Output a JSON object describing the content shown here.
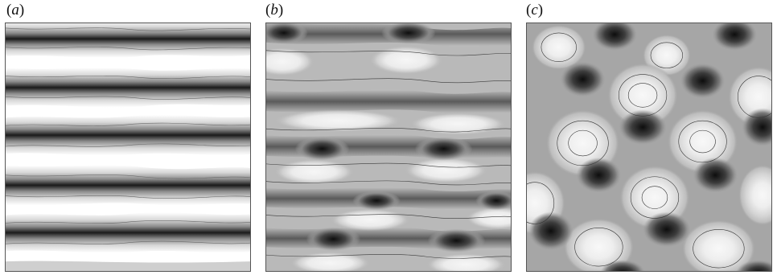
{
  "figure": {
    "panels": [
      {
        "id": "a",
        "label": "(a)",
        "letter": "a"
      },
      {
        "id": "b",
        "label": "(b)",
        "letter": "b"
      },
      {
        "id": "c",
        "label": "(c)",
        "letter": "c"
      }
    ],
    "colors": {
      "darkest": "#111111",
      "dark": "#4a4a4a",
      "mid": "#9a9a9a",
      "light": "#d2d2d2",
      "lightest": "#f3f3f3",
      "line": "#2a2a2a"
    }
  }
}
